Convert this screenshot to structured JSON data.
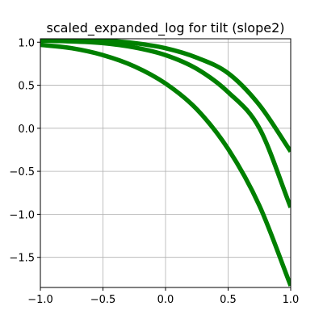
{
  "chart_data": {
    "type": "line",
    "title": "scaled_expanded_log for tilt (slope2)",
    "xlabel": "",
    "ylabel": "",
    "xlim": [
      -1.0,
      1.0
    ],
    "ylim": [
      -1.85,
      1.04
    ],
    "x_ticks": [
      -1.0,
      -0.5,
      0.0,
      0.5,
      1.0
    ],
    "x_tick_labels": [
      "−1.0",
      "−0.5",
      "0.0",
      "0.5",
      "1.0"
    ],
    "y_ticks": [
      1.0,
      0.5,
      0.0,
      -0.5,
      -1.0,
      -1.5
    ],
    "y_tick_labels": [
      "1.0",
      "0.5",
      "0.0",
      "−0.5",
      "−1.0",
      "−1.5"
    ],
    "grid": true,
    "legend": "none",
    "color": "#008000",
    "x": [
      -1.0,
      -0.75,
      -0.5,
      -0.25,
      0.0,
      0.25,
      0.5,
      0.75,
      1.0
    ],
    "series": [
      {
        "values": [
          0.97,
          0.93,
          0.85,
          0.72,
          0.52,
          0.22,
          -0.24,
          -0.9,
          -1.83
        ]
      },
      {
        "values": [
          1.02,
          1.01,
          0.99,
          0.94,
          0.85,
          0.69,
          0.42,
          0.0,
          -0.92
        ]
      },
      {
        "values": [
          1.03,
          1.03,
          1.02,
          0.99,
          0.93,
          0.82,
          0.64,
          0.27,
          -0.27
        ]
      }
    ]
  }
}
